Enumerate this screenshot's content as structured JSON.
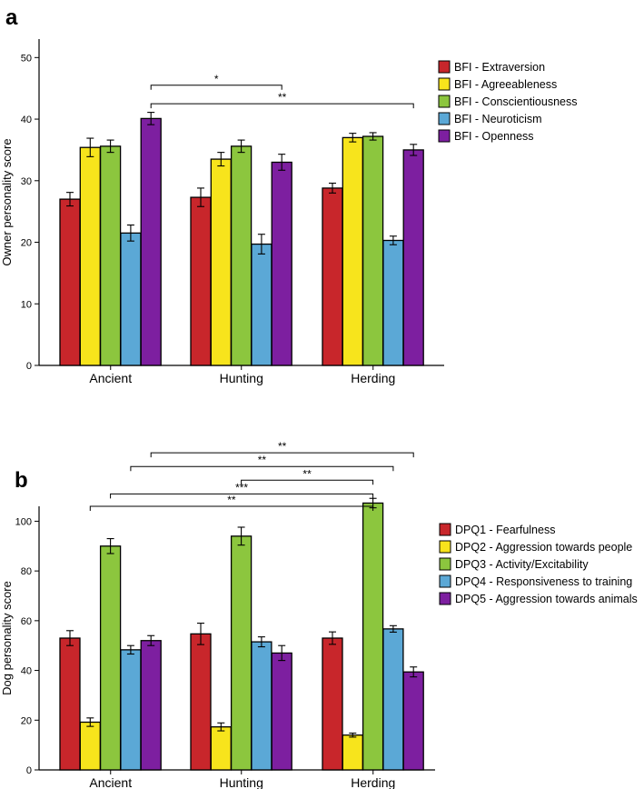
{
  "chart_data": [
    {
      "panel": "a",
      "type": "bar",
      "title": "",
      "xlabel": "",
      "ylabel": "Owner personality score",
      "ylim": [
        0,
        53
      ],
      "yticks": [
        0,
        10,
        20,
        30,
        40,
        50
      ],
      "grid": false,
      "legend_position": "top-right",
      "categories": [
        "Ancient",
        "Hunting",
        "Herding"
      ],
      "series": [
        {
          "name": "BFI - Extraversion",
          "color": "#c8262b",
          "values": [
            27.0,
            27.3,
            28.8
          ],
          "errors": [
            1.1,
            1.5,
            0.8
          ]
        },
        {
          "name": "BFI - Agreeableness",
          "color": "#f7e41c",
          "values": [
            35.4,
            33.5,
            37.0
          ],
          "errors": [
            1.5,
            1.1,
            0.7
          ]
        },
        {
          "name": "BFI - Conscientiousness",
          "color": "#8cc63e",
          "values": [
            35.6,
            35.6,
            37.2
          ],
          "errors": [
            1.0,
            1.0,
            0.6
          ]
        },
        {
          "name": "BFI - Neuroticism",
          "color": "#5ba8d6",
          "values": [
            21.5,
            19.7,
            20.3
          ],
          "errors": [
            1.3,
            1.6,
            0.7
          ]
        },
        {
          "name": "BFI - Openness",
          "color": "#7d1fa0",
          "values": [
            40.1,
            33.0,
            35.0
          ],
          "errors": [
            1.0,
            1.3,
            0.9
          ]
        }
      ],
      "significance": [
        {
          "label": "*",
          "from": {
            "category": 0,
            "series": 4
          },
          "to": {
            "category": 1,
            "series": 4
          },
          "level": 45.5
        },
        {
          "label": "**",
          "from": {
            "category": 0,
            "series": 4
          },
          "to": {
            "category": 2,
            "series": 4
          },
          "level": 42.5
        }
      ]
    },
    {
      "panel": "b",
      "type": "bar",
      "title": "",
      "xlabel": "",
      "ylabel": "Dog personality score",
      "ylim": [
        0,
        106
      ],
      "yticks": [
        0,
        20,
        40,
        60,
        80,
        100
      ],
      "grid": false,
      "legend_position": "right",
      "categories": [
        "Ancient",
        "Hunting",
        "Herding"
      ],
      "series": [
        {
          "name": "DPQ1 - Fearfulness",
          "color": "#c8262b",
          "values": [
            53.0,
            54.7,
            53.0
          ],
          "errors": [
            3.0,
            4.3,
            2.5
          ]
        },
        {
          "name": "DPQ2 - Aggression towards people",
          "color": "#f7e41c",
          "values": [
            19.2,
            17.3,
            14.0
          ],
          "errors": [
            1.7,
            1.6,
            0.8
          ]
        },
        {
          "name": "DPQ3 - Activity/Excitability",
          "color": "#8cc63e",
          "values": [
            90.0,
            94.0,
            107.3
          ],
          "errors": [
            3.0,
            3.6,
            1.9
          ]
        },
        {
          "name": "DPQ4 - Responsiveness to training",
          "color": "#5ba8d6",
          "values": [
            48.3,
            51.5,
            56.7
          ],
          "errors": [
            1.7,
            2.0,
            1.3
          ]
        },
        {
          "name": "DPQ5 - Aggression towards animals",
          "color": "#7d1fa0",
          "values": [
            52.0,
            47.0,
            39.4
          ],
          "errors": [
            2.0,
            3.0,
            2.0
          ]
        }
      ],
      "significance": [
        {
          "label": "**",
          "from": {
            "category": 0,
            "series": 4
          },
          "to": {
            "category": 2,
            "series": 4
          },
          "level": 127.5
        },
        {
          "label": "**",
          "from": {
            "category": 0,
            "series": 3
          },
          "to": {
            "category": 2,
            "series": 3
          },
          "level": 122.0
        },
        {
          "label": "**",
          "from": {
            "category": 1,
            "series": 2
          },
          "to": {
            "category": 2,
            "series": 2
          },
          "level": 116.5
        },
        {
          "label": "***",
          "from": {
            "category": 0,
            "series": 2
          },
          "to": {
            "category": 2,
            "series": 2
          },
          "level": 111.0
        },
        {
          "label": "**",
          "from": {
            "category": 0,
            "series": 1
          },
          "to": {
            "category": 2,
            "series": 2
          },
          "level": 106.0
        }
      ]
    }
  ]
}
